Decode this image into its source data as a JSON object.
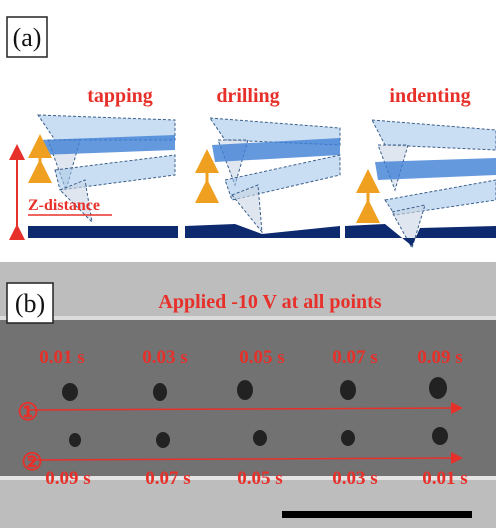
{
  "panel_a": {
    "label": "(a)",
    "modes": [
      "tapping",
      "drilling",
      "indenting"
    ],
    "z_label": "Z-distance"
  },
  "panel_b": {
    "label": "(b)",
    "title": "Applied -10 V at all points",
    "row_markers": [
      "①",
      "②"
    ],
    "row1_times": [
      "0.01 s",
      "0.03 s",
      "0.05 s",
      "0.07 s",
      "0.09 s"
    ],
    "row2_times": [
      "0.09 s",
      "0.07 s",
      "0.05 s",
      "0.03 s",
      "0.01 s"
    ]
  }
}
